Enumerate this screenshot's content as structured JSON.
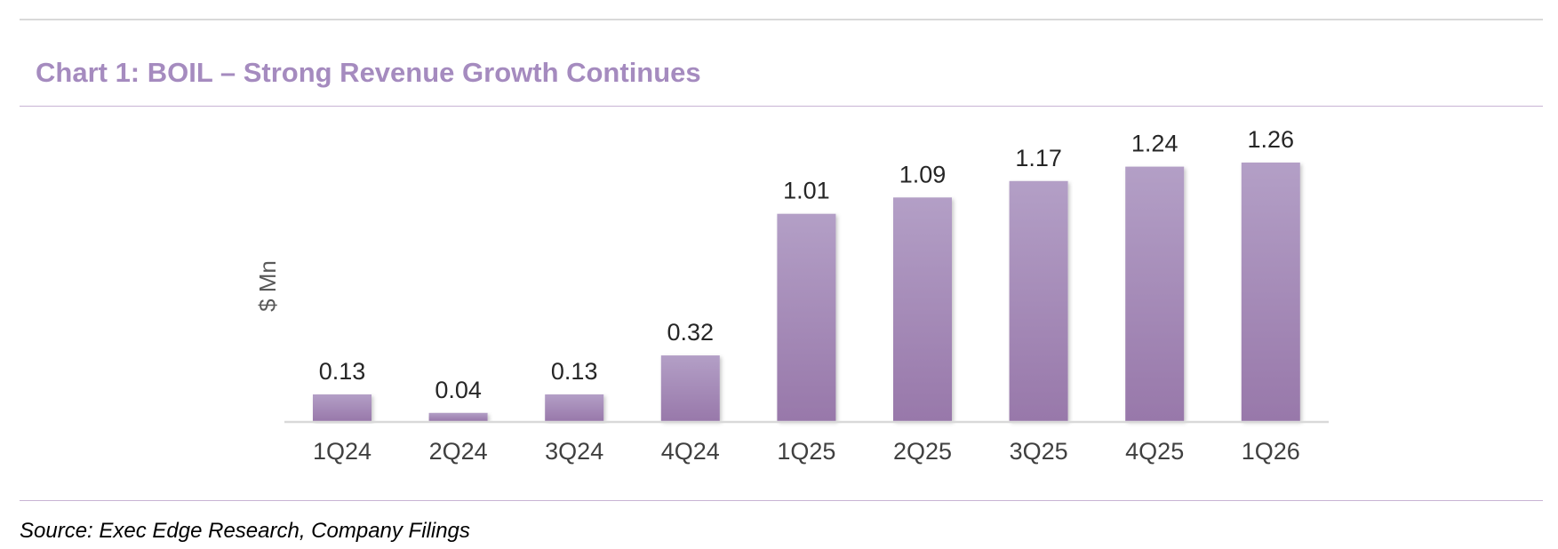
{
  "title": "Chart 1: BOIL – Strong Revenue Growth Continues",
  "source": "Source: Exec Edge Research, Company Filings",
  "colors": {
    "title": "#a58bbf",
    "bar_top": "#b39fc6",
    "bar_bottom": "#9878aa",
    "axis": "#d9d9d9"
  },
  "chart_data": {
    "type": "bar",
    "title": "Chart 1: BOIL – Strong Revenue Growth Continues",
    "xlabel": "",
    "ylabel": "$ Mn",
    "categories": [
      "1Q24",
      "2Q24",
      "3Q24",
      "4Q24",
      "1Q25",
      "2Q25",
      "3Q25",
      "4Q25",
      "1Q26"
    ],
    "values": [
      0.13,
      0.04,
      0.13,
      0.32,
      1.01,
      1.09,
      1.17,
      1.24,
      1.26
    ],
    "data_labels": [
      "0.13",
      "0.04",
      "0.13",
      "0.32",
      "1.01",
      "1.09",
      "1.17",
      "1.24",
      "1.26"
    ],
    "ylim": [
      0,
      1.4
    ],
    "grid": false,
    "legend": "none"
  }
}
